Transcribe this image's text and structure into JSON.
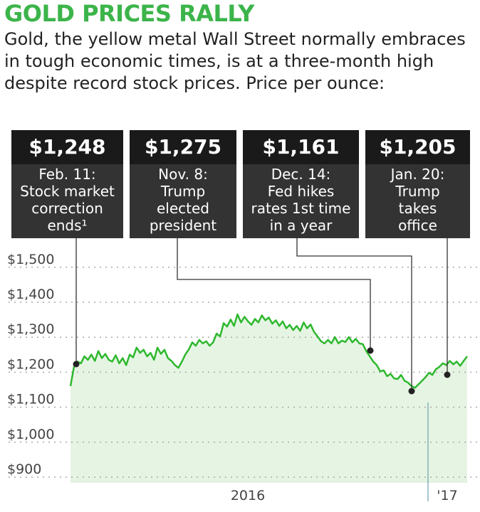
{
  "title": "GOLD PRICES RALLY",
  "subtitle": "Gold, the yellow metal Wall Street normally embraces in tough economic times, is at a three-month high despite record stock prices. Price per ounce:",
  "callouts": [
    {
      "price": "$1,248",
      "text": "Feb. 11:\nStock market\ncorrection\nends¹"
    },
    {
      "price": "$1,275",
      "text": "Nov. 8:\nTrump\nelected\npresident"
    },
    {
      "price": "$1,161",
      "text": "Dec. 14:\nFed hikes\nrates 1st time\nin a year"
    },
    {
      "price": "$1,205",
      "text": "Jan. 20:\nTrump\ntakes\noffice"
    }
  ],
  "colors": {
    "title": "#3cb44a",
    "line": "#2eb82e",
    "area": "#e6f5e3",
    "callout_bg": "#333333"
  },
  "chart_data": {
    "type": "area",
    "ylim": [
      900,
      1550
    ],
    "yticks": [
      900,
      1000,
      1100,
      1200,
      1300,
      1400,
      1500
    ],
    "yticklabels": [
      "$900",
      "$1,000",
      "$1,100",
      "$1,200",
      "$1,300",
      "$1,400",
      "$1,500"
    ],
    "xtick_labels": [
      "2016",
      "'17"
    ],
    "grid": true,
    "series": [
      {
        "values": [
          1140,
          1195,
          1210,
          1205,
          1225,
          1215,
          1230,
          1212,
          1240,
          1220,
          1232,
          1215,
          1210,
          1228,
          1205,
          1220,
          1200,
          1230,
          1222,
          1250,
          1235,
          1244,
          1225,
          1235,
          1215,
          1250,
          1232,
          1244,
          1220,
          1212,
          1200,
          1192,
          1210,
          1230,
          1245,
          1265,
          1255,
          1272,
          1262,
          1268,
          1255,
          1265,
          1290,
          1282,
          1320,
          1310,
          1330,
          1312,
          1345,
          1322,
          1338,
          1325,
          1315,
          1332,
          1322,
          1342,
          1328,
          1336,
          1318,
          1328,
          1312,
          1325,
          1305,
          1315,
          1300,
          1312,
          1298,
          1322,
          1305,
          1316,
          1295,
          1282,
          1268,
          1262,
          1272,
          1262,
          1280,
          1262,
          1270,
          1266,
          1280,
          1265,
          1275,
          1262,
          1260,
          1240,
          1225,
          1210,
          1200,
          1182,
          1185,
          1168,
          1175,
          1162,
          1160,
          1172,
          1155,
          1150,
          1140,
          1135,
          1145,
          1155,
          1165,
          1178,
          1172,
          1188,
          1195,
          1205,
          1200,
          1212,
          1202,
          1210,
          1198,
          1212,
          1225
        ]
      }
    ],
    "annotated_values": [
      1248,
      1275,
      1161,
      1205
    ]
  }
}
